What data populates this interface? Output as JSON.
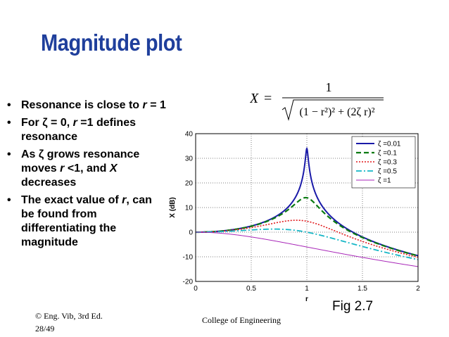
{
  "slide": {
    "title": "Magnitude plot",
    "bullets": [
      {
        "parts": [
          "Resonance is close to ",
          "r",
          " = 1"
        ]
      },
      {
        "parts": [
          "For ζ = 0, ",
          "r",
          " =1 defines resonance"
        ]
      },
      {
        "parts": [
          "As ζ grows resonance moves ",
          "r",
          " <1, and ",
          "X",
          " decreases"
        ]
      },
      {
        "parts": [
          "The exact value of ",
          "r",
          ", can be found from differentiating the magnitude"
        ]
      }
    ],
    "bullet_glyph": "•",
    "formula": {
      "lhs": "X",
      "equals": "=",
      "numerator": "1",
      "denominator": "(1 − r²)² + (2ζ r)²"
    },
    "footer_left_line1": "© Eng. Vib, 3rd Ed.",
    "footer_left_line2": "28/49",
    "footer_center": "College of Engineering",
    "fig_label": "Fig 2.7"
  },
  "colors": {
    "title": "#1f3f9c",
    "series": [
      "#1a1aa8",
      "#0b7a12",
      "#e0181b",
      "#16b6c6",
      "#a826b8"
    ]
  },
  "chart_data": {
    "type": "line",
    "xlabel": "r",
    "ylabel": "X (dB)",
    "xlim": [
      0,
      2
    ],
    "ylim": [
      -20,
      40
    ],
    "xticks": [
      0,
      0.5,
      1,
      1.5,
      2
    ],
    "xtick_labels": [
      "0",
      "0.5",
      "1",
      "1.5",
      "2"
    ],
    "yticks": [
      -20,
      -10,
      0,
      10,
      20,
      30,
      40
    ],
    "ytick_labels": [
      "-20",
      "-10",
      "0",
      "10",
      "20",
      "30",
      "40"
    ],
    "grid": true,
    "legend_position": "top-right",
    "series": [
      {
        "name": "ζ =0.01",
        "zeta": 0.01,
        "style": "solid"
      },
      {
        "name": "ζ =0.1",
        "zeta": 0.1,
        "style": "dashed"
      },
      {
        "name": "ζ =0.3",
        "zeta": 0.3,
        "style": "dotted"
      },
      {
        "name": "ζ =0.5",
        "zeta": 0.5,
        "style": "dashdot"
      },
      {
        "name": "ζ =1",
        "zeta": 1,
        "style": "solid-thin"
      }
    ]
  }
}
